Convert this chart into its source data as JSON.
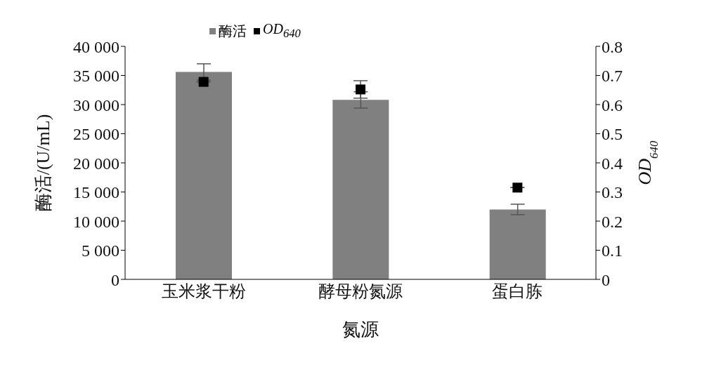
{
  "chart_data": {
    "type": "bar",
    "xlabel": "氮源",
    "ylabel": "酶活/(U/mL)",
    "y2label": "OD$_{640}$",
    "categories": [
      "玉米浆干粉",
      "酵母粉氮源",
      "蛋白胨"
    ],
    "series": [
      {
        "name": "酶活",
        "color": "#808080",
        "values": [
          35600,
          30800,
          12000
        ],
        "errors": [
          1400,
          1400,
          900
        ]
      },
      {
        "name": "OD$_{640}$",
        "type": "scatter",
        "axis": "y2",
        "color": "#000000",
        "marker": "square",
        "values": [
          0.678,
          0.652,
          0.315
        ],
        "errors": [
          null,
          0.03,
          null
        ]
      }
    ],
    "ylim": [
      0,
      40000
    ],
    "yticks": [
      0,
      {
        "value": 5000,
        "label": "5 000"
      },
      {
        "value": 10000,
        "label": "10 000"
      },
      {
        "value": 15000,
        "label": "15 000"
      },
      {
        "value": 20000,
        "label": "20 000"
      },
      {
        "value": 25000,
        "label": "25 000"
      },
      {
        "value": 30000,
        "label": "30 000"
      },
      {
        "value": 35000,
        "label": "35 000"
      },
      {
        "value": 40000,
        "label": "40 000"
      }
    ],
    "y2lim": [
      0,
      0.8
    ],
    "y2ticks": [
      0,
      0.1,
      0.2,
      0.3,
      0.4,
      0.5,
      0.6,
      0.7,
      0.8
    ],
    "legend": "top left",
    "grid": false
  }
}
